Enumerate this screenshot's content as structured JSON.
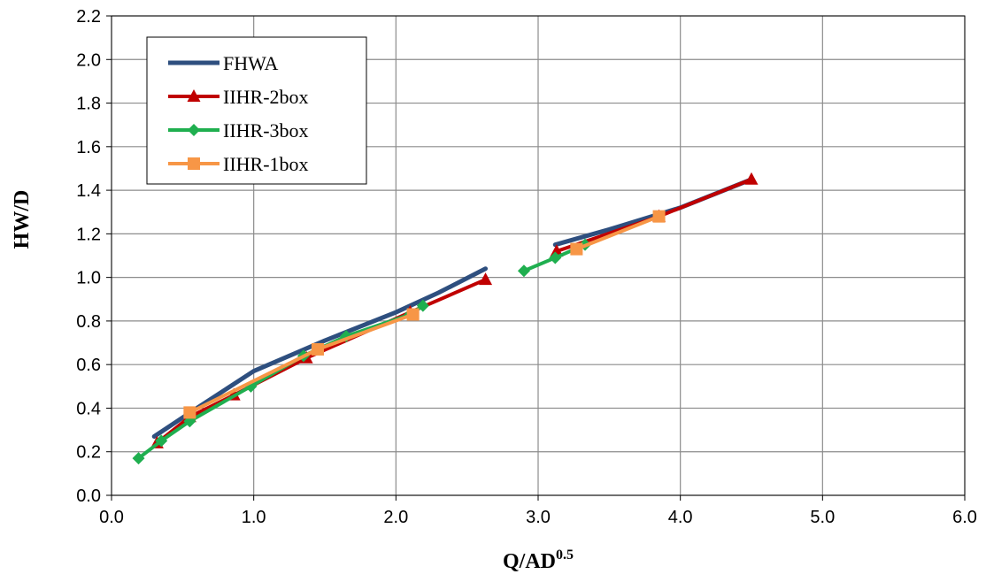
{
  "chart_data": {
    "type": "line",
    "xlabel": "Q/AD",
    "xlabel_sup": "0.5",
    "ylabel": "HW/D",
    "xlim": [
      0,
      6
    ],
    "ylim": [
      0,
      2.2
    ],
    "x_ticks": [
      "0.0",
      "1.0",
      "2.0",
      "3.0",
      "4.0",
      "5.0",
      "6.0"
    ],
    "y_ticks": [
      "0.0",
      "0.2",
      "0.4",
      "0.6",
      "0.8",
      "1.0",
      "1.2",
      "1.4",
      "1.6",
      "1.8",
      "2.0",
      "2.2"
    ],
    "grid": true,
    "legend_position": "top-left",
    "series": [
      {
        "name": "FHWA",
        "color": "#2E4F7F",
        "marker": "none",
        "segments": [
          [
            [
              0.3,
              0.27
            ],
            [
              0.6,
              0.4
            ],
            [
              1.0,
              0.57
            ],
            [
              1.5,
              0.71
            ],
            [
              2.0,
              0.84
            ],
            [
              2.3,
              0.93
            ],
            [
              2.63,
              1.04
            ]
          ],
          [
            [
              3.12,
              1.15
            ],
            [
              3.5,
              1.22
            ],
            [
              4.0,
              1.32
            ],
            [
              4.5,
              1.45
            ]
          ]
        ]
      },
      {
        "name": "IIHR-2box",
        "color": "#C00000",
        "marker": "triangle",
        "segments": [
          [
            [
              0.32,
              0.24
            ],
            [
              0.55,
              0.36
            ],
            [
              0.86,
              0.46
            ],
            [
              1.37,
              0.63
            ],
            [
              2.1,
              0.84
            ],
            [
              2.63,
              0.99
            ]
          ],
          [
            [
              3.13,
              1.12
            ],
            [
              3.85,
              1.28
            ],
            [
              4.5,
              1.45
            ]
          ]
        ]
      },
      {
        "name": "IIHR-3box",
        "color": "#1FAF4F",
        "marker": "diamond",
        "segments": [
          [
            [
              0.19,
              0.17
            ],
            [
              0.35,
              0.25
            ],
            [
              0.55,
              0.34
            ],
            [
              0.98,
              0.5
            ],
            [
              1.35,
              0.64
            ],
            [
              1.65,
              0.73
            ],
            [
              2.1,
              0.83
            ],
            [
              2.19,
              0.87
            ]
          ],
          [
            [
              2.9,
              1.03
            ],
            [
              3.12,
              1.09
            ],
            [
              3.33,
              1.15
            ]
          ]
        ]
      },
      {
        "name": "IIHR-1box",
        "color": "#F79646",
        "marker": "square",
        "segments": [
          [
            [
              0.55,
              0.38
            ],
            [
              1.45,
              0.67
            ],
            [
              2.12,
              0.83
            ]
          ],
          [
            [
              3.27,
              1.13
            ],
            [
              3.85,
              1.28
            ]
          ]
        ]
      }
    ]
  }
}
